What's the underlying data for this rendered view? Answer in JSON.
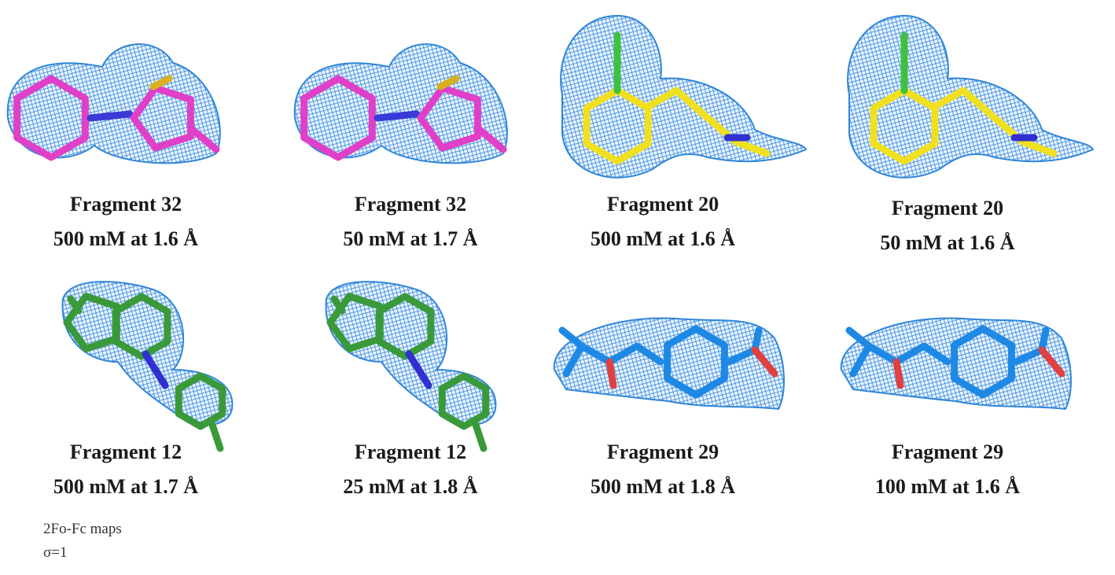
{
  "panels": [
    {
      "title": "Fragment 32",
      "condition": "500 mM at 1.6 Å"
    },
    {
      "title": "Fragment 32",
      "condition": "50 mM at 1.7 Å"
    },
    {
      "title": "Fragment 20",
      "condition": "500 mM at 1.6 Å"
    },
    {
      "title": "Fragment 20",
      "condition": "50 mM at 1.6 Å"
    },
    {
      "title": "Fragment 12",
      "condition": "500 mM at 1.7 Å"
    },
    {
      "title": "Fragment 12",
      "condition": "25 mM at 1.8 Å"
    },
    {
      "title": "Fragment 29",
      "condition": "500 mM at 1.8 Å"
    },
    {
      "title": "Fragment 29",
      "condition": "100 mM at 1.6 Å"
    }
  ],
  "footnote": [
    "2Fo-Fc maps",
    "σ=1"
  ]
}
